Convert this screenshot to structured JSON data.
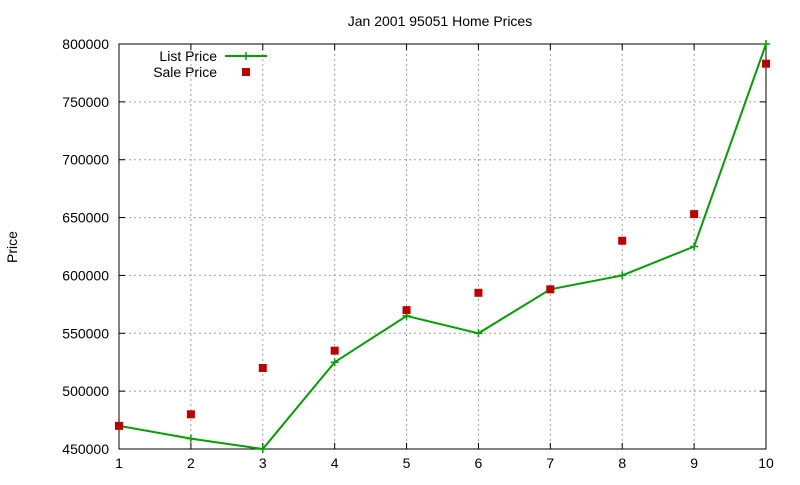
{
  "chart_data": {
    "type": "line",
    "title": "Jan 2001 95051 Home Prices",
    "xlabel": "",
    "ylabel": "Price",
    "x": [
      1,
      2,
      3,
      4,
      5,
      6,
      7,
      8,
      9,
      10
    ],
    "xlim": [
      1,
      10
    ],
    "ylim": [
      450000,
      800000
    ],
    "yticks": [
      450000,
      500000,
      550000,
      600000,
      650000,
      700000,
      750000,
      800000
    ],
    "xticks": [
      1,
      2,
      3,
      4,
      5,
      6,
      7,
      8,
      9,
      10
    ],
    "grid": true,
    "legend_position": "top-left",
    "series": [
      {
        "name": "List Price",
        "style": "line-with-plus-markers",
        "color": "#00a000",
        "values": [
          470000,
          459000,
          450000,
          525000,
          565000,
          550000,
          588000,
          600000,
          625000,
          800000
        ]
      },
      {
        "name": "Sale Price",
        "style": "square-markers",
        "color": "#c00000",
        "values": [
          470000,
          480000,
          520000,
          535000,
          570000,
          585000,
          588000,
          630000,
          653000,
          783000
        ]
      }
    ]
  }
}
